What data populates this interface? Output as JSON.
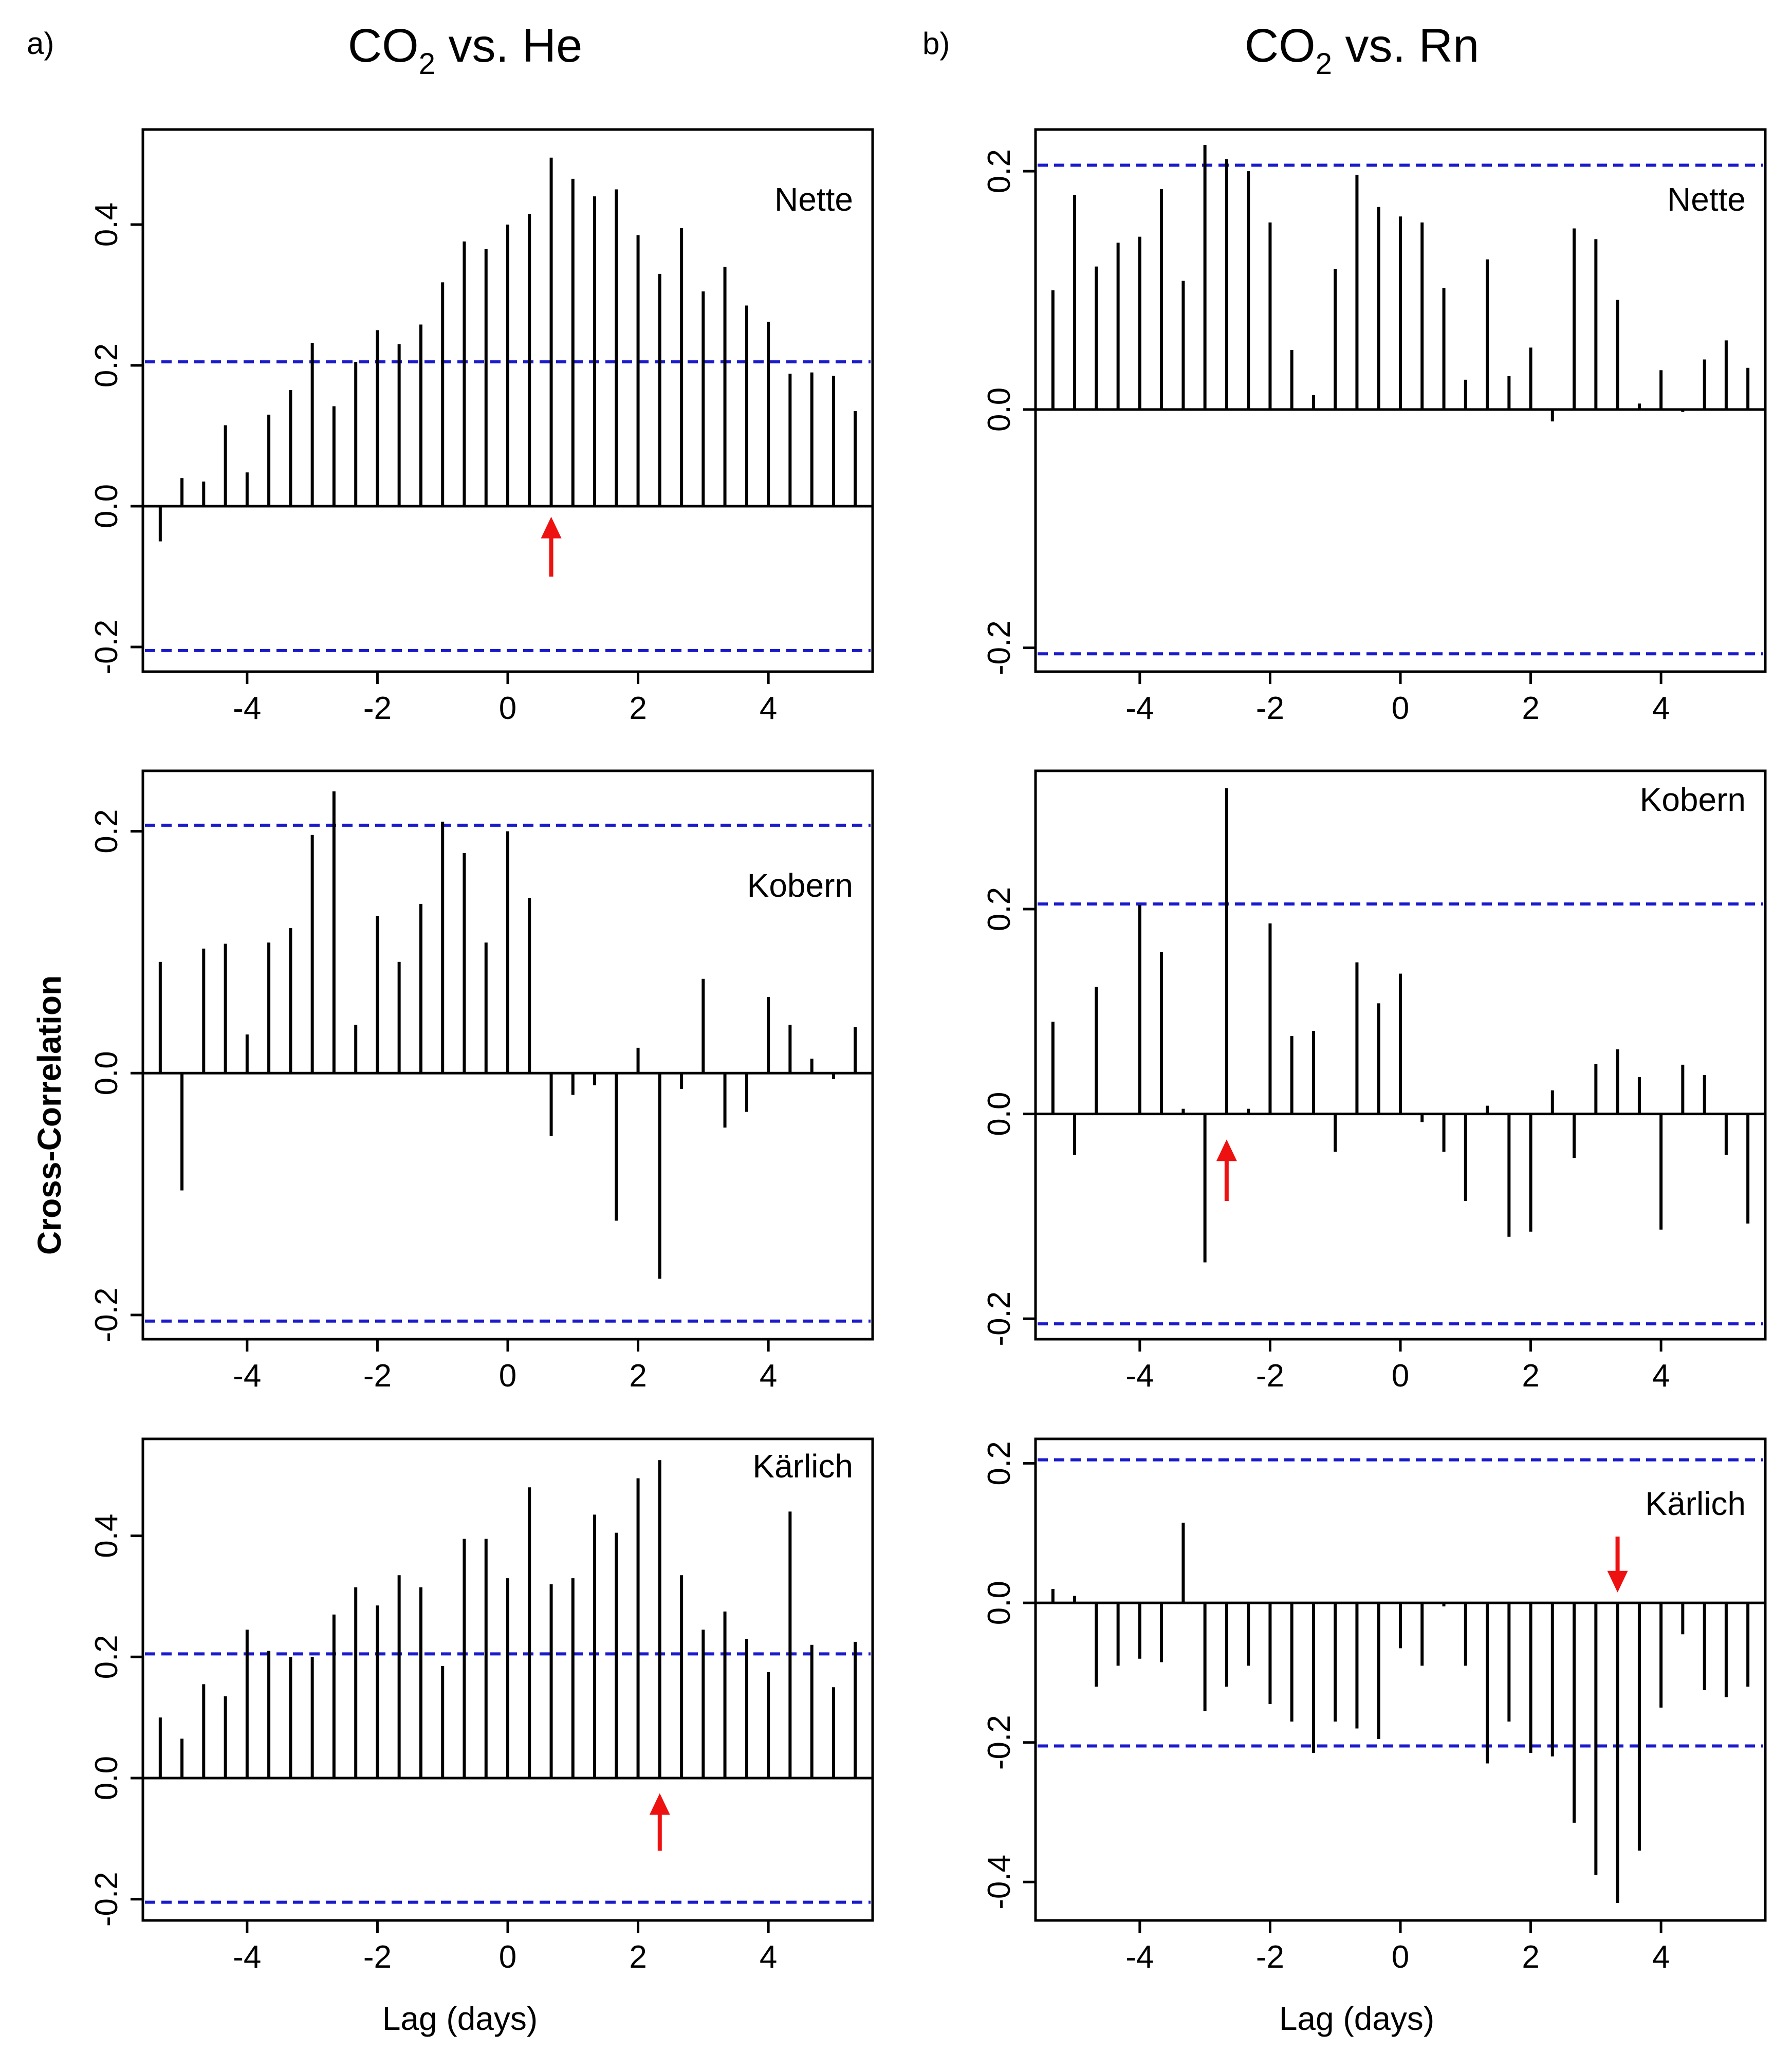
{
  "figure": {
    "panel_a_label": "a)",
    "panel_b_label": "b)",
    "title_a": "CO",
    "title_a_sub": "2",
    "title_a_rest": " vs. He",
    "title_b": "CO",
    "title_b_sub": "2",
    "title_b_rest": " vs. Rn",
    "ylabel": "Cross-Correlation",
    "xlabel": "Lag (days)"
  },
  "colors": {
    "bar": "#000000",
    "ci": "#1a1acc",
    "arrow": "#ee1111"
  },
  "chart_data": [
    {
      "id": "he-nette",
      "type": "bar",
      "column": "a",
      "row": 0,
      "site": "Nette",
      "xlim": [
        -5.6,
        5.6
      ],
      "ylim": [
        -0.235,
        0.535
      ],
      "xticks": [
        -4,
        -2,
        0,
        2,
        4
      ],
      "yticks": [
        -0.2,
        0.0,
        0.2,
        0.4
      ],
      "ci": 0.205,
      "arrow": {
        "lag": 0.667,
        "dir": "up",
        "from": -0.1,
        "to": -0.015
      },
      "lags": [
        -5.333,
        -5,
        -4.667,
        -4.333,
        -4,
        -3.667,
        -3.333,
        -3,
        -2.667,
        -2.333,
        -2,
        -1.667,
        -1.333,
        -1,
        -0.667,
        -0.333,
        0,
        0.333,
        0.667,
        1,
        1.333,
        1.667,
        2,
        2.333,
        2.667,
        3,
        3.333,
        3.667,
        4,
        4.333,
        4.667,
        5,
        5.333
      ],
      "values": [
        -0.05,
        0.04,
        0.035,
        0.115,
        0.048,
        0.13,
        0.165,
        0.232,
        0.142,
        0.205,
        0.25,
        0.23,
        0.258,
        0.318,
        0.376,
        0.365,
        0.4,
        0.415,
        0.495,
        0.465,
        0.44,
        0.45,
        0.385,
        0.33,
        0.395,
        0.305,
        0.34,
        0.285,
        0.262,
        0.188,
        0.19,
        0.185,
        0.135
      ]
    },
    {
      "id": "he-kobern",
      "type": "bar",
      "column": "a",
      "row": 1,
      "site": "Kobern",
      "xlim": [
        -5.6,
        5.6
      ],
      "ylim": [
        -0.22,
        0.25
      ],
      "xticks": [
        -4,
        -2,
        0,
        2,
        4
      ],
      "yticks": [
        -0.2,
        0.0,
        0.2
      ],
      "ci": 0.205,
      "arrow": null,
      "lags": [
        -5.333,
        -5,
        -4.667,
        -4.333,
        -4,
        -3.667,
        -3.333,
        -3,
        -2.667,
        -2.333,
        -2,
        -1.667,
        -1.333,
        -1,
        -0.667,
        -0.333,
        0,
        0.333,
        0.667,
        1,
        1.333,
        1.667,
        2,
        2.333,
        2.667,
        3,
        3.333,
        3.667,
        4,
        4.333,
        4.667,
        5,
        5.333
      ],
      "values": [
        0.092,
        -0.097,
        0.103,
        0.107,
        0.032,
        0.108,
        0.12,
        0.197,
        0.233,
        0.04,
        0.13,
        0.092,
        0.14,
        0.208,
        0.182,
        0.108,
        0.2,
        0.145,
        -0.052,
        -0.018,
        -0.01,
        -0.122,
        0.021,
        -0.17,
        -0.013,
        0.078,
        -0.045,
        -0.032,
        0.063,
        0.04,
        0.012,
        -0.005,
        0.038
      ]
    },
    {
      "id": "he-karlich",
      "type": "bar",
      "column": "a",
      "row": 2,
      "site": "Kärlich",
      "xlim": [
        -5.6,
        5.6
      ],
      "ylim": [
        -0.235,
        0.56
      ],
      "xticks": [
        -4,
        -2,
        0,
        2,
        4
      ],
      "yticks": [
        -0.2,
        0.0,
        0.2,
        0.4
      ],
      "ci": 0.205,
      "arrow": {
        "lag": 2.333,
        "dir": "up",
        "from": -0.12,
        "to": -0.025
      },
      "lags": [
        -5.333,
        -5,
        -4.667,
        -4.333,
        -4,
        -3.667,
        -3.333,
        -3,
        -2.667,
        -2.333,
        -2,
        -1.667,
        -1.333,
        -1,
        -0.667,
        -0.333,
        0,
        0.333,
        0.667,
        1,
        1.333,
        1.667,
        2,
        2.333,
        2.667,
        3,
        3.333,
        3.667,
        4,
        4.333,
        4.667,
        5,
        5.333
      ],
      "values": [
        0.1,
        0.065,
        0.155,
        0.135,
        0.245,
        0.21,
        0.2,
        0.2,
        0.27,
        0.315,
        0.285,
        0.335,
        0.315,
        0.185,
        0.395,
        0.395,
        0.33,
        0.48,
        0.32,
        0.33,
        0.435,
        0.405,
        0.495,
        0.525,
        0.335,
        0.245,
        0.275,
        0.23,
        0.175,
        0.44,
        0.22,
        0.15,
        0.225
      ]
    },
    {
      "id": "rn-nette",
      "type": "bar",
      "column": "b",
      "row": 0,
      "site": "Nette",
      "xlim": [
        -5.6,
        5.6
      ],
      "ylim": [
        -0.22,
        0.235
      ],
      "xticks": [
        -4,
        -2,
        0,
        2,
        4
      ],
      "yticks": [
        -0.2,
        0.0,
        0.2
      ],
      "ci": 0.205,
      "arrow": null,
      "lags": [
        -5.333,
        -5,
        -4.667,
        -4.333,
        -4,
        -3.667,
        -3.333,
        -3,
        -2.667,
        -2.333,
        -2,
        -1.667,
        -1.333,
        -1,
        -0.667,
        -0.333,
        0,
        0.333,
        0.667,
        1,
        1.333,
        1.667,
        2,
        2.333,
        2.667,
        3,
        3.333,
        3.667,
        4,
        4.333,
        4.667,
        5,
        5.333
      ],
      "values": [
        0.1,
        0.18,
        0.12,
        0.14,
        0.145,
        0.185,
        0.108,
        0.222,
        0.21,
        0.2,
        0.157,
        0.05,
        0.012,
        0.118,
        0.197,
        0.17,
        0.162,
        0.157,
        0.102,
        0.025,
        0.126,
        0.028,
        0.052,
        -0.01,
        0.152,
        0.143,
        0.092,
        0.005,
        0.033,
        -0.002,
        0.042,
        0.058,
        0.035
      ]
    },
    {
      "id": "rn-kobern",
      "type": "bar",
      "column": "b",
      "row": 1,
      "site": "Kobern",
      "xlim": [
        -5.6,
        5.6
      ],
      "ylim": [
        -0.22,
        0.335
      ],
      "xticks": [
        -4,
        -2,
        0,
        2,
        4
      ],
      "yticks": [
        -0.2,
        0.0,
        0.2
      ],
      "ci": 0.205,
      "arrow": {
        "lag": -2.667,
        "dir": "up",
        "from": -0.085,
        "to": -0.025
      },
      "lags": [
        -5.333,
        -5,
        -4.667,
        -4.333,
        -4,
        -3.667,
        -3.333,
        -3,
        -2.667,
        -2.333,
        -2,
        -1.667,
        -1.333,
        -1,
        -0.667,
        -0.333,
        0,
        0.333,
        0.667,
        1,
        1.333,
        1.667,
        2,
        2.333,
        2.667,
        3,
        3.333,
        3.667,
        4,
        4.333,
        4.667,
        5,
        5.333
      ],
      "values": [
        0.09,
        -0.04,
        0.124,
        0.0,
        0.204,
        0.158,
        0.005,
        -0.145,
        0.318,
        0.005,
        0.186,
        0.076,
        0.081,
        -0.037,
        0.148,
        0.108,
        0.137,
        -0.008,
        -0.037,
        -0.085,
        0.008,
        -0.12,
        -0.115,
        0.023,
        -0.043,
        0.049,
        0.063,
        0.036,
        -0.113,
        0.048,
        0.038,
        -0.04,
        -0.107
      ]
    },
    {
      "id": "rn-karlich",
      "type": "bar",
      "column": "b",
      "row": 2,
      "site": "Kärlich",
      "xlim": [
        -5.6,
        5.6
      ],
      "ylim": [
        -0.455,
        0.235
      ],
      "xticks": [
        -4,
        -2,
        0,
        2,
        4
      ],
      "yticks": [
        -0.4,
        -0.2,
        0.0,
        0.2
      ],
      "ci": 0.205,
      "arrow": {
        "lag": 3.333,
        "dir": "down",
        "from": 0.095,
        "to": 0.015
      },
      "lags": [
        -5.333,
        -5,
        -4.667,
        -4.333,
        -4,
        -3.667,
        -3.333,
        -3,
        -2.667,
        -2.333,
        -2,
        -1.667,
        -1.333,
        -1,
        -0.667,
        -0.333,
        0,
        0.333,
        0.667,
        1,
        1.333,
        1.667,
        2,
        2.333,
        2.667,
        3,
        3.333,
        3.667,
        4,
        4.333,
        4.667,
        5,
        5.333
      ],
      "values": [
        0.02,
        0.01,
        -0.12,
        -0.09,
        -0.08,
        -0.085,
        0.115,
        -0.155,
        -0.12,
        -0.09,
        -0.145,
        -0.17,
        -0.215,
        -0.17,
        -0.18,
        -0.195,
        -0.065,
        -0.09,
        -0.005,
        -0.09,
        -0.23,
        -0.17,
        -0.215,
        -0.22,
        -0.315,
        -0.39,
        -0.43,
        -0.355,
        -0.15,
        -0.045,
        -0.125,
        -0.135,
        -0.12
      ]
    }
  ]
}
